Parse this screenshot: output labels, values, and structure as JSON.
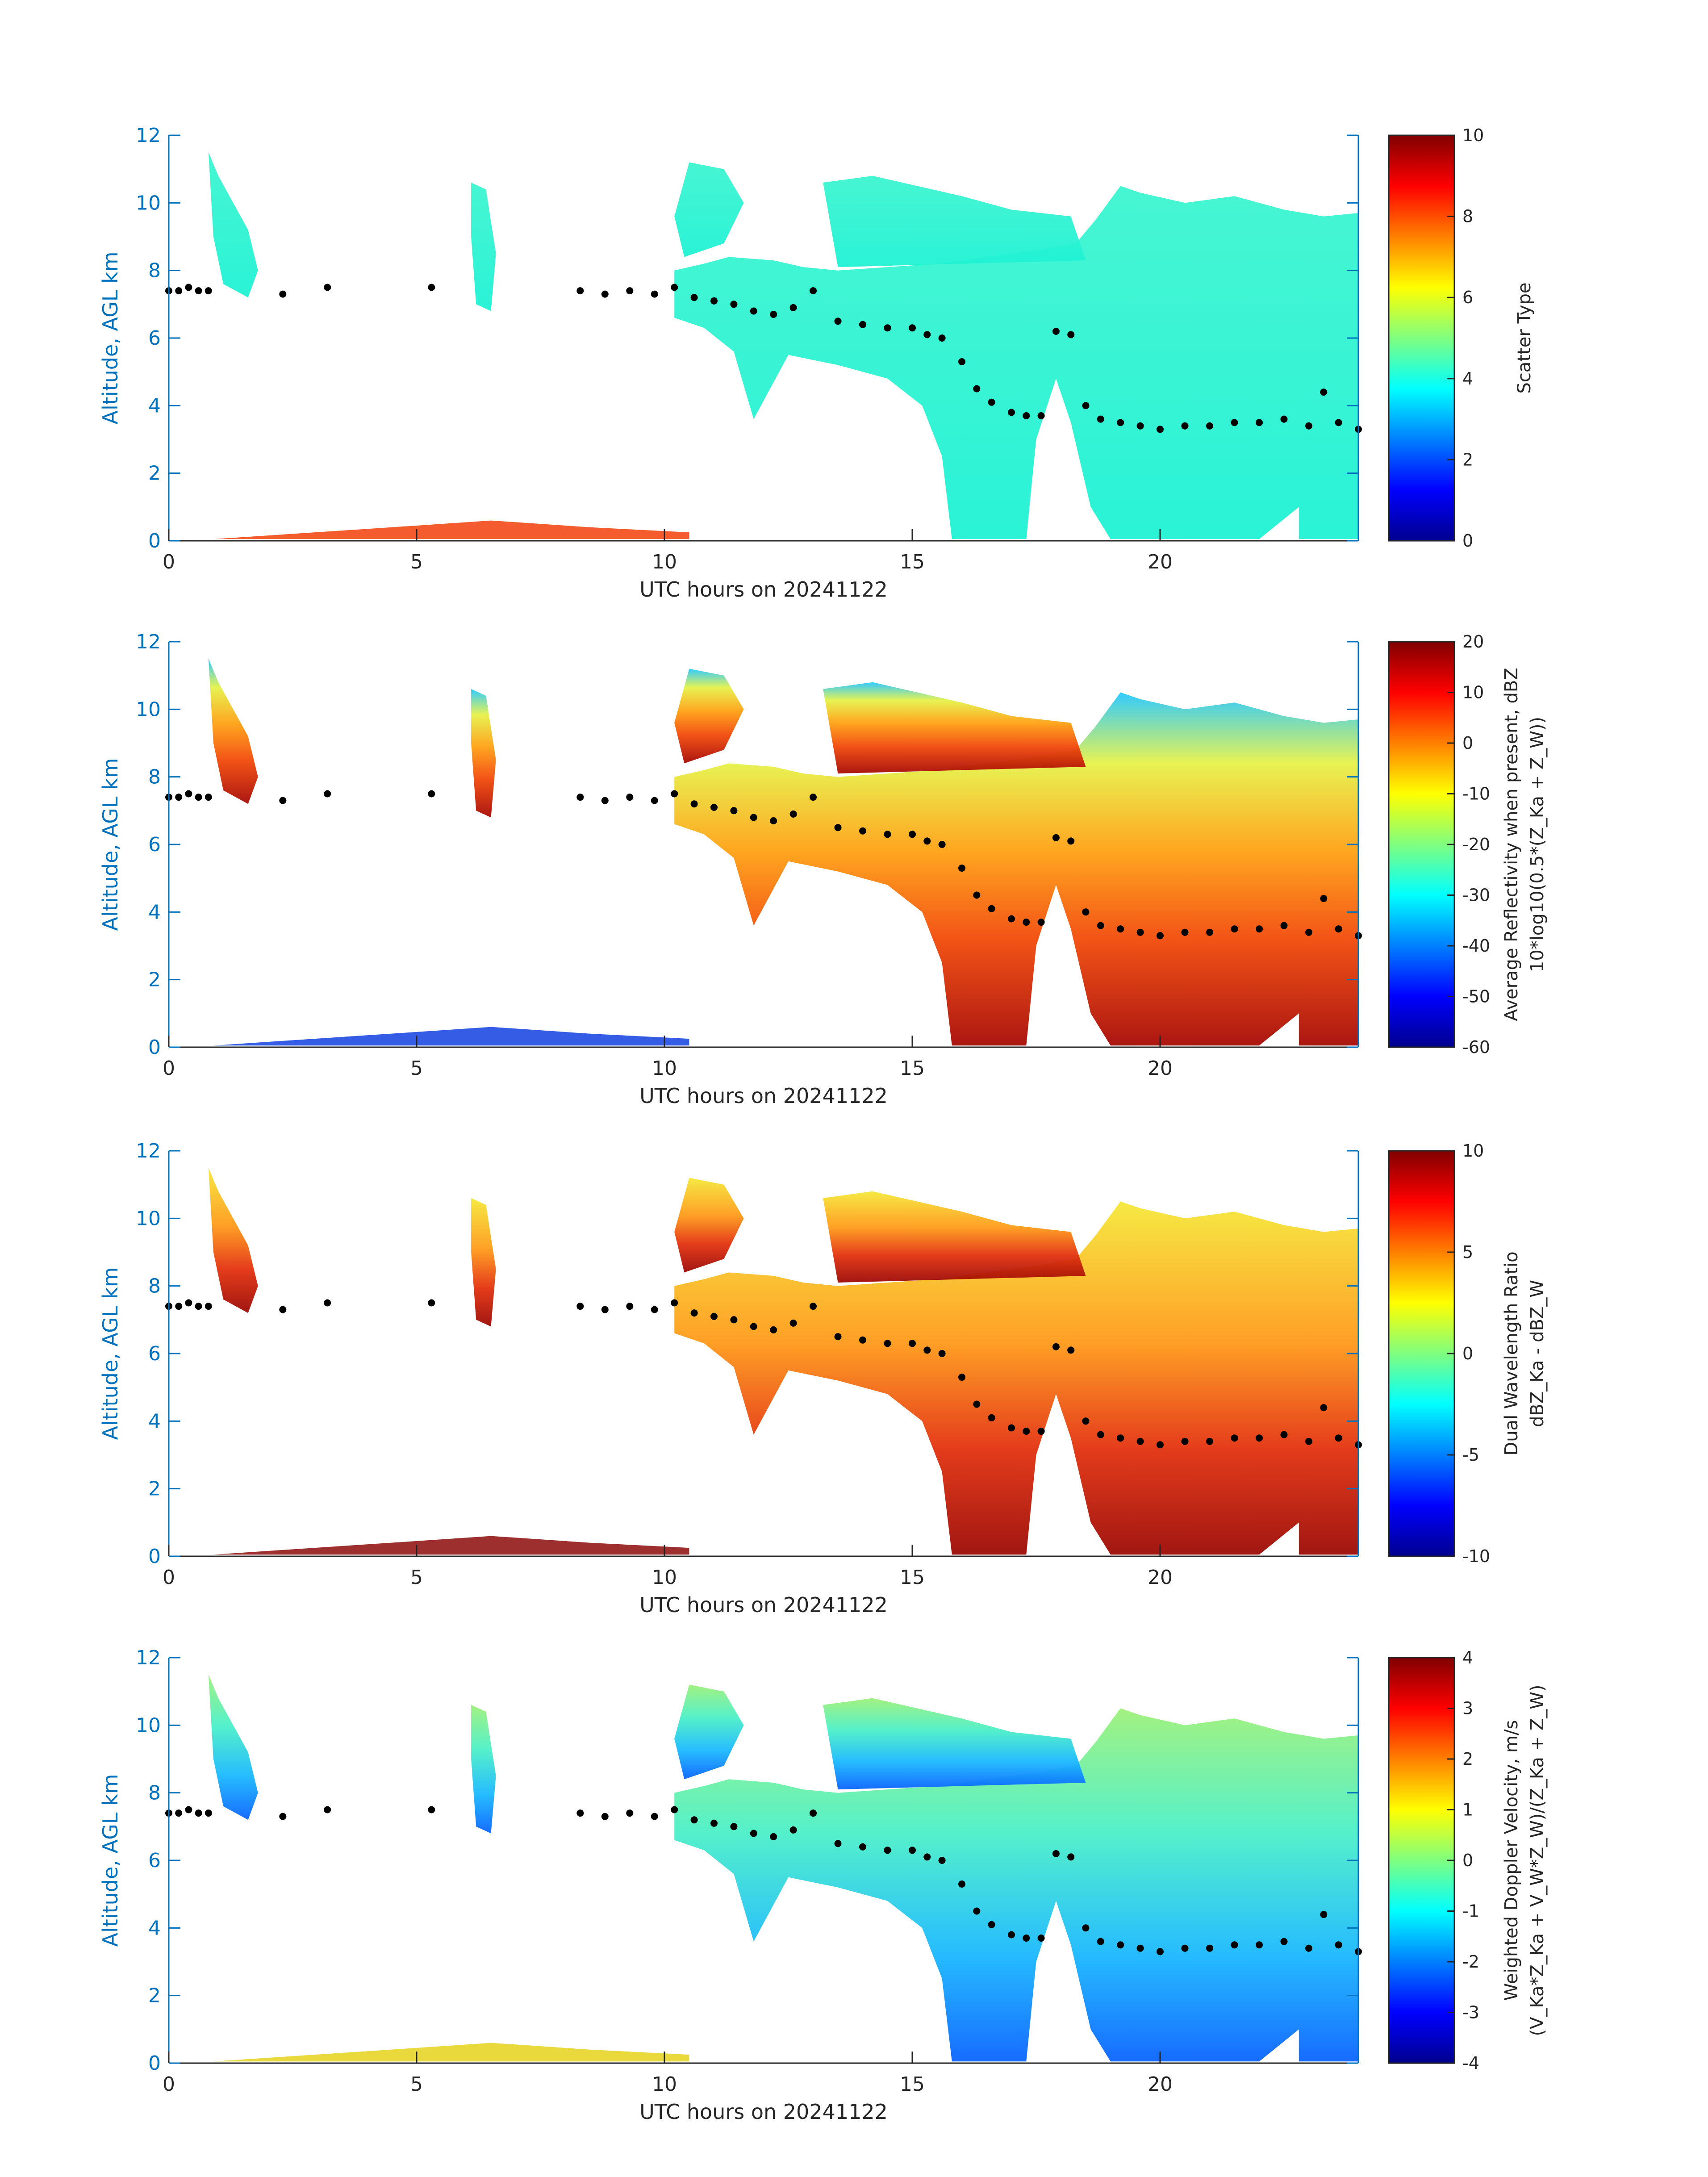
{
  "chart_data": [
    {
      "type": "heatmap",
      "xlabel": "UTC hours on 20241122",
      "ylabel": "Altitude, AGL km",
      "xlim": [
        0,
        24
      ],
      "ylim": [
        0,
        12
      ],
      "xticks": [
        "0",
        "5",
        "10",
        "15",
        "20"
      ],
      "yticks": [
        "0",
        "2",
        "4",
        "6",
        "8",
        "10",
        "12"
      ],
      "colorbar": {
        "label": [
          "Scatter Type"
        ],
        "range": [
          0,
          10
        ],
        "ticks": [
          "0",
          "2",
          "4",
          "6",
          "8",
          "10"
        ],
        "colormap": "jet"
      }
    },
    {
      "type": "heatmap",
      "xlabel": "UTC hours on 20241122",
      "ylabel": "Altitude, AGL km",
      "xlim": [
        0,
        24
      ],
      "ylim": [
        0,
        12
      ],
      "xticks": [
        "0",
        "5",
        "10",
        "15",
        "20"
      ],
      "yticks": [
        "0",
        "2",
        "4",
        "6",
        "8",
        "10",
        "12"
      ],
      "colorbar": {
        "label": [
          "Average Reflectivity when present, dBZ",
          "10*log10(0.5*(Z_Ka + Z_W))"
        ],
        "range": [
          -60,
          20
        ],
        "ticks": [
          "-60",
          "-50",
          "-40",
          "-30",
          "-20",
          "-10",
          "0",
          "10",
          "20"
        ],
        "colormap": "jet"
      }
    },
    {
      "type": "heatmap",
      "xlabel": "UTC hours on 20241122",
      "ylabel": "Altitude, AGL km",
      "xlim": [
        0,
        24
      ],
      "ylim": [
        0,
        12
      ],
      "xticks": [
        "0",
        "5",
        "10",
        "15",
        "20"
      ],
      "yticks": [
        "0",
        "2",
        "4",
        "6",
        "8",
        "10",
        "12"
      ],
      "colorbar": {
        "label": [
          "Dual Wavelength Ratio",
          "dBZ_Ka - dBZ_W"
        ],
        "range": [
          -10,
          10
        ],
        "ticks": [
          "-10",
          "-5",
          "0",
          "5",
          "10"
        ],
        "colormap": "jet"
      }
    },
    {
      "type": "heatmap",
      "xlabel": "UTC hours on 20241122",
      "ylabel": "Altitude, AGL km",
      "xlim": [
        0,
        24
      ],
      "ylim": [
        0,
        12
      ],
      "xticks": [
        "0",
        "5",
        "10",
        "15",
        "20"
      ],
      "yticks": [
        "0",
        "2",
        "4",
        "6",
        "8",
        "10",
        "12"
      ],
      "colorbar": {
        "label": [
          "Weighted Doppler Velocity, m/s",
          "(V_Ka*Z_Ka + V_W*Z_W)/(Z_Ka + Z_W)"
        ],
        "range": [
          -4,
          4
        ],
        "ticks": [
          "-4",
          "-3",
          "-2",
          "-1",
          "0",
          "1",
          "2",
          "3",
          "4"
        ],
        "colormap": "jet"
      }
    }
  ],
  "cloud_top_series": {
    "x_hours": [
      0,
      0.2,
      0.4,
      0.6,
      0.8,
      2.3,
      3.2,
      5.3,
      8.3,
      8.8,
      9.3,
      9.8,
      10.2,
      10.6,
      11,
      11.4,
      11.8,
      12.2,
      12.6,
      13,
      13.5,
      14,
      14.5,
      15,
      15.3,
      15.6,
      16,
      16.3,
      16.6,
      17,
      17.3,
      17.6,
      17.9,
      18.2,
      18.5,
      18.8,
      19.2,
      19.6,
      20,
      20.5,
      21,
      21.5,
      22,
      22.5,
      23,
      23.3,
      23.6,
      24
    ],
    "y_km": [
      7.4,
      7.4,
      7.5,
      7.4,
      7.4,
      7.3,
      7.5,
      7.5,
      7.4,
      7.3,
      7.4,
      7.3,
      7.5,
      7.2,
      7.1,
      7,
      6.8,
      6.7,
      6.9,
      7.4,
      6.5,
      6.4,
      6.3,
      6.3,
      6.1,
      6,
      5.3,
      4.5,
      4.1,
      3.8,
      3.7,
      3.7,
      6.2,
      6.1,
      4,
      3.6,
      3.5,
      3.4,
      3.3,
      3.4,
      3.4,
      3.5,
      3.5,
      3.6,
      3.4,
      4.4,
      3.5,
      3.3
    ]
  }
}
